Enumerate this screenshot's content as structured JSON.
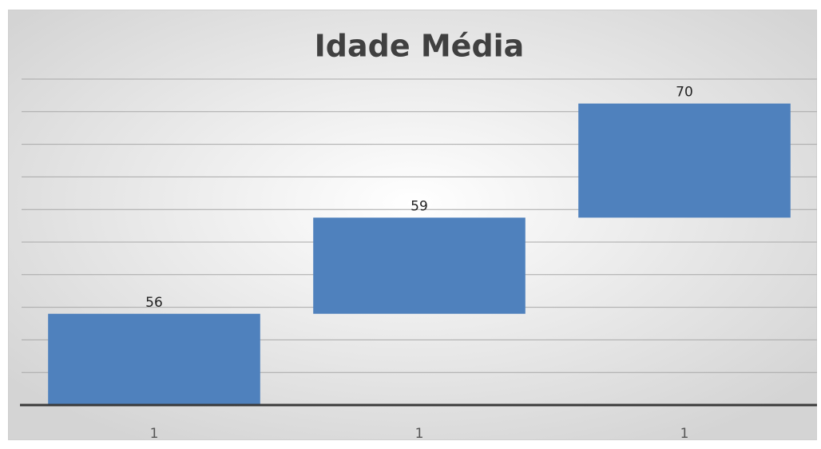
{
  "chart_data": {
    "type": "waterfall",
    "title": "Idade Média",
    "categories": [
      "1",
      "1",
      "1"
    ],
    "values": [
      56,
      59,
      70
    ],
    "color": "#4f81bd",
    "ylim": [
      0,
      200
    ],
    "yticks": [
      0,
      20,
      40,
      60,
      80,
      100,
      120,
      140,
      160,
      180,
      200
    ],
    "grid": true
  }
}
